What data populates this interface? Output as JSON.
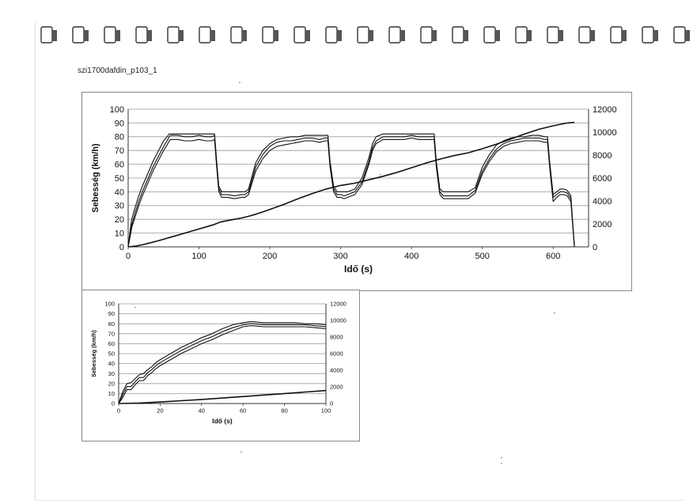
{
  "document": {
    "caption": "szi1700dafdin_p103_1"
  },
  "chart_data": [
    {
      "type": "line",
      "title": "",
      "xlabel": "Idő (s)",
      "ylabel": "Sebesség (km/h)",
      "y2label": "",
      "xlim": [
        0,
        650
      ],
      "ylim": [
        0,
        100
      ],
      "y2lim": [
        0,
        12000
      ],
      "xticks": [
        "0",
        "100",
        "200",
        "300",
        "400",
        "500",
        "600"
      ],
      "yticks": [
        "0",
        "10",
        "20",
        "30",
        "40",
        "50",
        "60",
        "70",
        "80",
        "90",
        "100"
      ],
      "y2ticks": [
        "0",
        "2000",
        "4000",
        "6000",
        "8000",
        "10000",
        "12000"
      ],
      "grid": true,
      "legend": "none",
      "series": [
        {
          "axis": "left",
          "x": [
            0,
            3,
            5,
            10,
            15,
            20,
            25,
            30,
            35,
            40,
            45,
            50,
            55,
            58,
            60,
            70,
            80,
            90,
            100,
            110,
            118,
            122,
            125,
            128,
            132,
            140,
            150,
            160,
            165,
            170,
            180,
            190,
            200,
            210,
            220,
            230,
            240,
            250,
            260,
            270,
            278,
            282,
            285,
            290,
            295,
            300,
            305,
            310,
            320,
            330,
            340,
            345,
            350,
            360,
            370,
            380,
            390,
            400,
            410,
            420,
            430,
            432,
            435,
            440,
            445,
            450,
            460,
            470,
            480,
            490,
            500,
            510,
            520,
            530,
            540,
            550,
            560,
            570,
            580,
            588,
            592,
            595,
            600,
            605,
            610,
            615,
            620,
            625,
            630
          ],
          "y": [
            0,
            10,
            16,
            25,
            33,
            40,
            46,
            52,
            58,
            63,
            68,
            73,
            77,
            80,
            81,
            81,
            80,
            80,
            81,
            80,
            80,
            81,
            60,
            42,
            38,
            38,
            37,
            38,
            38,
            40,
            58,
            67,
            73,
            76,
            77,
            77,
            78,
            79,
            79,
            78,
            79,
            79,
            60,
            42,
            38,
            38,
            37,
            38,
            40,
            47,
            62,
            72,
            77,
            80,
            80,
            80,
            80,
            81,
            80,
            80,
            80,
            80,
            60,
            40,
            37,
            37,
            37,
            37,
            37,
            41,
            55,
            64,
            71,
            75,
            77,
            78,
            79,
            79,
            79,
            78,
            78,
            60,
            36,
            38,
            40,
            40,
            39,
            35,
            0
          ]
        },
        {
          "axis": "left",
          "x": [
            0,
            3,
            5,
            10,
            15,
            20,
            25,
            30,
            35,
            40,
            45,
            50,
            55,
            58,
            60,
            70,
            80,
            90,
            100,
            110,
            118,
            122,
            125,
            128,
            132,
            140,
            150,
            160,
            165,
            170,
            180,
            190,
            200,
            210,
            220,
            230,
            240,
            250,
            260,
            270,
            278,
            282,
            285,
            290,
            295,
            300,
            305,
            310,
            320,
            330,
            340,
            345,
            350,
            360,
            370,
            380,
            390,
            400,
            410,
            420,
            430,
            432,
            435,
            440,
            445,
            450,
            460,
            470,
            480,
            490,
            500,
            510,
            520,
            530,
            540,
            550,
            560,
            570,
            580,
            588,
            592,
            595,
            600,
            605,
            610,
            615,
            620,
            625,
            630
          ],
          "y": [
            0,
            13,
            20,
            29,
            37,
            44,
            50,
            56,
            62,
            67,
            72,
            77,
            80,
            82,
            82,
            82,
            82,
            82,
            82,
            82,
            82,
            82,
            62,
            44,
            40,
            40,
            40,
            40,
            40,
            42,
            61,
            70,
            75,
            78,
            79,
            80,
            80,
            81,
            81,
            81,
            81,
            81,
            62,
            44,
            40,
            40,
            40,
            40,
            42,
            50,
            65,
            75,
            80,
            82,
            82,
            82,
            82,
            82,
            82,
            82,
            82,
            82,
            62,
            42,
            40,
            40,
            40,
            40,
            40,
            43,
            58,
            67,
            74,
            77,
            79,
            80,
            80,
            81,
            81,
            80,
            80,
            62,
            38,
            40,
            42,
            42,
            41,
            37,
            0
          ]
        },
        {
          "axis": "left",
          "x": [
            0,
            3,
            5,
            10,
            15,
            20,
            25,
            30,
            35,
            40,
            45,
            50,
            55,
            58,
            60,
            70,
            80,
            90,
            100,
            110,
            118,
            122,
            125,
            128,
            132,
            140,
            150,
            160,
            165,
            170,
            180,
            190,
            200,
            210,
            220,
            230,
            240,
            250,
            260,
            270,
            278,
            282,
            285,
            290,
            295,
            300,
            305,
            310,
            320,
            330,
            340,
            345,
            350,
            360,
            370,
            380,
            390,
            400,
            410,
            420,
            430,
            432,
            435,
            440,
            445,
            450,
            460,
            470,
            480,
            490,
            500,
            510,
            520,
            530,
            540,
            550,
            560,
            570,
            580,
            588,
            592,
            595,
            600,
            605,
            610,
            615,
            620,
            625,
            630
          ],
          "y": [
            0,
            8,
            14,
            22,
            30,
            37,
            43,
            49,
            55,
            60,
            65,
            70,
            74,
            77,
            78,
            78,
            77,
            77,
            78,
            77,
            77,
            78,
            58,
            40,
            36,
            36,
            35,
            36,
            36,
            38,
            55,
            64,
            70,
            73,
            74,
            75,
            76,
            77,
            77,
            76,
            77,
            77,
            58,
            40,
            36,
            36,
            35,
            36,
            38,
            45,
            60,
            70,
            75,
            78,
            78,
            78,
            78,
            79,
            78,
            78,
            78,
            78,
            58,
            38,
            35,
            35,
            35,
            35,
            35,
            39,
            53,
            62,
            69,
            73,
            75,
            76,
            77,
            77,
            77,
            76,
            76,
            58,
            33,
            36,
            38,
            38,
            37,
            33,
            0
          ]
        },
        {
          "axis": "right",
          "x": [
            0,
            10,
            20,
            30,
            40,
            50,
            60,
            70,
            80,
            90,
            100,
            110,
            120,
            130,
            140,
            150,
            160,
            170,
            180,
            190,
            200,
            220,
            240,
            260,
            280,
            300,
            320,
            340,
            360,
            380,
            400,
            420,
            440,
            460,
            480,
            500,
            520,
            540,
            560,
            580,
            600,
            620,
            630
          ],
          "y": [
            0,
            60,
            180,
            330,
            490,
            660,
            840,
            1020,
            1200,
            1380,
            1560,
            1740,
            1920,
            2160,
            2290,
            2400,
            2520,
            2660,
            2840,
            3040,
            3260,
            3700,
            4200,
            4650,
            5050,
            5350,
            5550,
            5850,
            6150,
            6500,
            6900,
            7300,
            7650,
            7950,
            8200,
            8550,
            8950,
            9400,
            9850,
            10250,
            10550,
            10800,
            10850
          ]
        }
      ]
    },
    {
      "type": "line",
      "title": "",
      "xlabel": "Idő (s)",
      "ylabel": "Sebesség (km/h)",
      "y2label": "",
      "xlim": [
        0,
        100
      ],
      "ylim": [
        0,
        100
      ],
      "y2lim": [
        0,
        12000
      ],
      "xticks": [
        "0",
        "20",
        "40",
        "60",
        "80",
        "100"
      ],
      "yticks": [
        "0",
        "10",
        "20",
        "30",
        "40",
        "50",
        "60",
        "70",
        "80",
        "90",
        "100"
      ],
      "y2ticks": [
        "0",
        "2000",
        "4000",
        "6000",
        "8000",
        "10000",
        "12000"
      ],
      "grid": true,
      "legend": "none",
      "series": [
        {
          "axis": "left",
          "x": [
            0,
            2,
            4,
            6,
            8,
            10,
            12,
            14,
            16,
            18,
            20,
            25,
            30,
            35,
            40,
            45,
            50,
            55,
            60,
            63,
            65,
            70,
            75,
            80,
            85,
            90,
            95,
            100
          ],
          "y": [
            0,
            9,
            17,
            17,
            22,
            26,
            26,
            31,
            34,
            38,
            41,
            47,
            53,
            58,
            63,
            67,
            72,
            76,
            79,
            80,
            80,
            79,
            79,
            79,
            79,
            79,
            78,
            77
          ]
        },
        {
          "axis": "left",
          "x": [
            0,
            2,
            4,
            6,
            8,
            10,
            12,
            14,
            16,
            18,
            20,
            25,
            30,
            35,
            40,
            45,
            50,
            55,
            60,
            63,
            65,
            70,
            75,
            80,
            85,
            90,
            95,
            100
          ],
          "y": [
            0,
            12,
            20,
            21,
            25,
            29,
            30,
            34,
            37,
            41,
            44,
            50,
            56,
            61,
            66,
            70,
            75,
            79,
            81,
            82,
            82,
            81,
            81,
            81,
            81,
            80,
            80,
            79
          ]
        },
        {
          "axis": "left",
          "x": [
            0,
            2,
            4,
            6,
            8,
            10,
            12,
            14,
            16,
            18,
            20,
            25,
            30,
            35,
            40,
            45,
            50,
            55,
            60,
            63,
            65,
            70,
            75,
            80,
            85,
            90,
            95,
            100
          ],
          "y": [
            0,
            6,
            14,
            14,
            19,
            23,
            23,
            28,
            31,
            35,
            38,
            44,
            50,
            55,
            60,
            64,
            69,
            73,
            77,
            78,
            78,
            77,
            77,
            77,
            77,
            77,
            76,
            75
          ]
        },
        {
          "axis": "right",
          "x": [
            0,
            10,
            20,
            30,
            40,
            50,
            60,
            70,
            80,
            90,
            100
          ],
          "y": [
            0,
            60,
            180,
            330,
            490,
            660,
            840,
            1020,
            1200,
            1380,
            1560
          ]
        }
      ]
    }
  ]
}
